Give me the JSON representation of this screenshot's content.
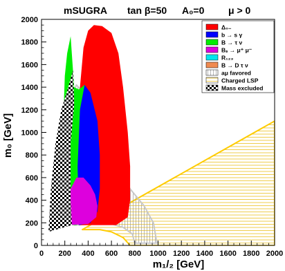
{
  "chart_data": {
    "type": "area",
    "title_parts": [
      "mSUGRA",
      "tan β=50",
      "A₀=0",
      "μ > 0"
    ],
    "xlabel": "m₁/₂ [GeV]",
    "ylabel": "m₀ [GeV]",
    "xlim": [
      0,
      2000
    ],
    "ylim": [
      0,
      2000
    ],
    "xticks": [
      0,
      200,
      400,
      600,
      800,
      1000,
      1200,
      1400,
      1600,
      1800,
      2000
    ],
    "yticks": [
      0,
      200,
      400,
      600,
      800,
      1000,
      1200,
      1400,
      1600,
      1800,
      2000
    ],
    "legend_position": "top-right",
    "legend": [
      {
        "label": "Δ₀₋",
        "style": "red-fill"
      },
      {
        "label": "b → s γ",
        "style": "blue-fill"
      },
      {
        "label": "B → τ ν",
        "style": "green-fill"
      },
      {
        "label": "Bₛ → μ⁺ μ⁻",
        "style": "magenta-fill"
      },
      {
        "label": "R₁₂₃",
        "style": "cyan-fill"
      },
      {
        "label": "B → D τ ν",
        "style": "orange-fill"
      },
      {
        "label": "aμ favored",
        "style": "vertical-hatch"
      },
      {
        "label": "Charged LSP",
        "style": "horizontal-hatch"
      },
      {
        "label": "Mass excluded",
        "style": "checker"
      }
    ],
    "series": [
      {
        "name": "Δ₀₋",
        "color": "#ff0000",
        "points": [
          [
            320,
            180
          ],
          [
            310,
            700
          ],
          [
            330,
            1400
          ],
          [
            360,
            1750
          ],
          [
            400,
            1900
          ],
          [
            450,
            1950
          ],
          [
            520,
            1940
          ],
          [
            600,
            1880
          ],
          [
            660,
            1700
          ],
          [
            700,
            1400
          ],
          [
            740,
            1000
          ],
          [
            760,
            700
          ],
          [
            760,
            400
          ],
          [
            740,
            250
          ],
          [
            640,
            180
          ],
          [
            320,
            180
          ]
        ]
      },
      {
        "name": "b → s γ",
        "color": "#0000ff",
        "points": [
          [
            320,
            180
          ],
          [
            310,
            700
          ],
          [
            330,
            1200
          ],
          [
            370,
            1420
          ],
          [
            420,
            1350
          ],
          [
            480,
            1100
          ],
          [
            500,
            800
          ],
          [
            500,
            500
          ],
          [
            480,
            300
          ],
          [
            420,
            200
          ],
          [
            320,
            180
          ]
        ]
      },
      {
        "name": "B → τ ν",
        "color": "#00ee00",
        "points": [
          [
            170,
            180
          ],
          [
            180,
            700
          ],
          [
            190,
            1200
          ],
          [
            200,
            1500
          ],
          [
            220,
            1700
          ],
          [
            250,
            1850
          ],
          [
            280,
            1400
          ],
          [
            320,
            1380
          ],
          [
            370,
            1420
          ],
          [
            410,
            1250
          ],
          [
            420,
            900
          ],
          [
            410,
            700
          ],
          [
            420,
            400
          ],
          [
            380,
            250
          ],
          [
            300,
            180
          ],
          [
            170,
            180
          ]
        ]
      },
      {
        "name": "Bₛ → μ⁺ μ⁻",
        "color": "#dd00dd",
        "points": [
          [
            240,
            180
          ],
          [
            220,
            350
          ],
          [
            250,
            500
          ],
          [
            300,
            600
          ],
          [
            360,
            600
          ],
          [
            420,
            530
          ],
          [
            460,
            450
          ],
          [
            480,
            350
          ],
          [
            470,
            250
          ],
          [
            400,
            190
          ],
          [
            240,
            180
          ]
        ]
      },
      {
        "name": "R₁₂₃",
        "color": "#00e5ee",
        "points": [
          [
            70,
            150
          ],
          [
            100,
            280
          ],
          [
            150,
            440
          ],
          [
            200,
            560
          ],
          [
            230,
            520
          ],
          [
            250,
            400
          ],
          [
            230,
            260
          ],
          [
            170,
            180
          ],
          [
            70,
            150
          ]
        ]
      },
      {
        "name": "Mass excluded",
        "color": "#000000",
        "points": [
          [
            60,
            120
          ],
          [
            80,
            500
          ],
          [
            120,
            900
          ],
          [
            170,
            1200
          ],
          [
            230,
            1400
          ],
          [
            270,
            1550
          ],
          [
            280,
            1250
          ],
          [
            250,
            900
          ],
          [
            250,
            400
          ],
          [
            260,
            180
          ],
          [
            60,
            120
          ]
        ]
      },
      {
        "name": "aμ favored",
        "color": "#bbbbbb",
        "points": [
          [
            280,
            180
          ],
          [
            290,
            400
          ],
          [
            260,
            900
          ],
          [
            230,
            1120
          ],
          [
            260,
            1320
          ],
          [
            300,
            1420
          ],
          [
            400,
            1300
          ],
          [
            480,
            1100
          ],
          [
            560,
            900
          ],
          [
            650,
            700
          ],
          [
            760,
            500
          ],
          [
            880,
            350
          ],
          [
            960,
            200
          ],
          [
            990,
            20
          ],
          [
            800,
            20
          ],
          [
            780,
            100
          ],
          [
            700,
            160
          ],
          [
            600,
            190
          ],
          [
            450,
            190
          ],
          [
            280,
            180
          ]
        ]
      },
      {
        "name": "Charged LSP",
        "color": "#ffcc00",
        "points": [
          [
            350,
            140
          ],
          [
            2000,
            1100
          ],
          [
            2000,
            0
          ],
          [
            760,
            0
          ],
          [
            700,
            70
          ],
          [
            600,
            120
          ],
          [
            500,
            140
          ],
          [
            350,
            140
          ]
        ]
      }
    ]
  }
}
